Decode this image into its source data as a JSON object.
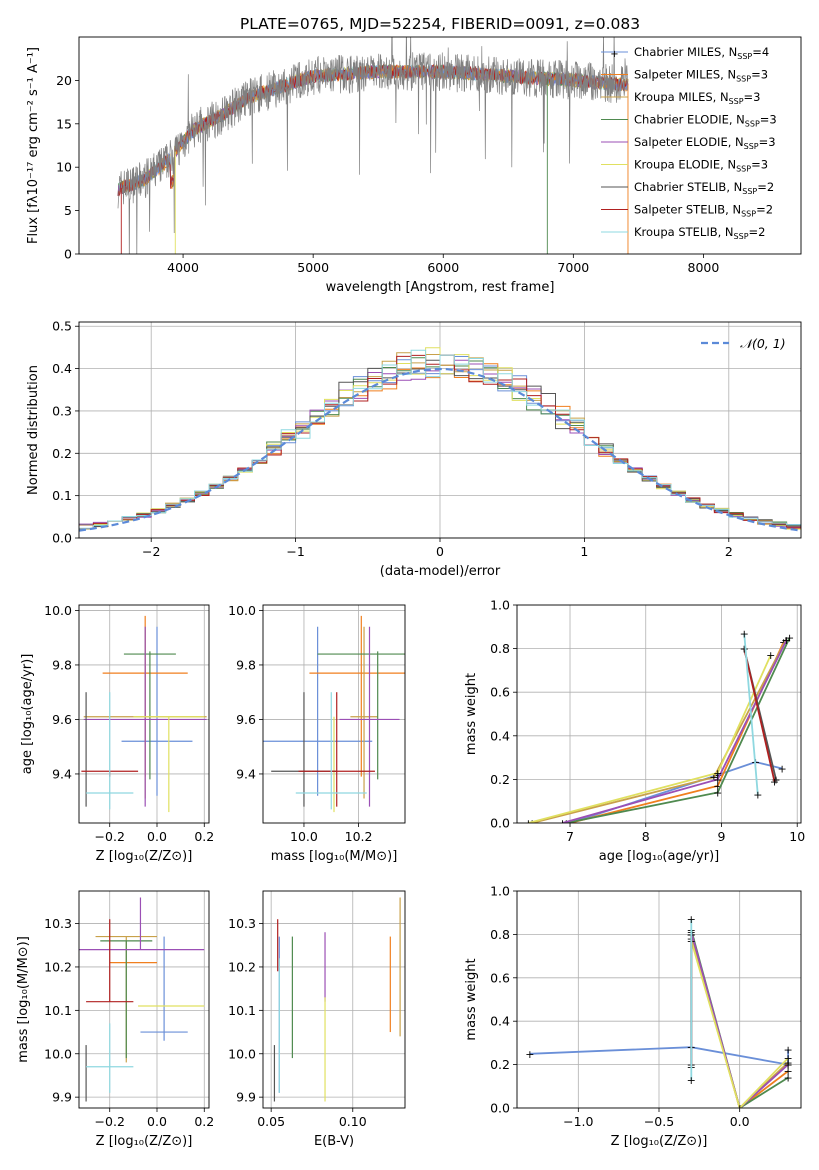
{
  "title": "PLATE=0765, MJD=52254, FIBERID=0091, z=0.083",
  "colors": [
    "#6a8fd8",
    "#f07f1e",
    "#c8a14a",
    "#4f8a4f",
    "#9b4fb5",
    "#e0e060",
    "#555555",
    "#b02020",
    "#8fd8e0"
  ],
  "legend_entries": [
    {
      "base": "Chabrier MILES, N",
      "sub": "SSP",
      "tail": "=4"
    },
    {
      "base": "Salpeter MILES, N",
      "sub": "SSP",
      "tail": "=3"
    },
    {
      "base": "Kroupa MILES, N",
      "sub": "SSP",
      "tail": "=3"
    },
    {
      "base": "Chabrier ELODIE, N",
      "sub": "SSP",
      "tail": "=3"
    },
    {
      "base": "Salpeter ELODIE, N",
      "sub": "SSP",
      "tail": "=3"
    },
    {
      "base": "Kroupa ELODIE, N",
      "sub": "SSP",
      "tail": "=3"
    },
    {
      "base": "Chabrier STELIB, N",
      "sub": "SSP",
      "tail": "=2"
    },
    {
      "base": "Salpeter STELIB, N",
      "sub": "SSP",
      "tail": "=2"
    },
    {
      "base": "Kroupa STELIB, N",
      "sub": "SSP",
      "tail": "=2"
    }
  ],
  "chart_data": [
    {
      "id": "spectrum",
      "type": "line",
      "xlabel": "wavelength [Angstrom, rest frame]",
      "ylabel": "Flux [fλ10⁻¹⁷ erg cm⁻² s⁻¹ A⁻¹]",
      "xlim": [
        3200,
        8750
      ],
      "ylim": [
        0,
        25
      ],
      "xticks": [
        4000,
        5000,
        6000,
        7000,
        8000
      ],
      "yticks": [
        0,
        5,
        10,
        15,
        20
      ],
      "grid": false,
      "legend": "upper right",
      "continuum": {
        "x": [
          3500,
          3700,
          3900,
          4000,
          4100,
          4300,
          4500,
          4700,
          5000,
          5500,
          6000,
          6500,
          7000,
          7400
        ],
        "y": [
          7.5,
          8.5,
          11,
          13,
          14.5,
          16,
          18,
          19,
          20.5,
          21,
          21,
          20.5,
          20,
          19.5
        ]
      }
    },
    {
      "id": "residuals",
      "type": "step",
      "xlabel": "(data-model)/error",
      "ylabel": "Normed distribution",
      "xlim": [
        -2.5,
        2.5
      ],
      "ylim": [
        0,
        0.51
      ],
      "xticks": [
        -2,
        -1,
        0,
        1,
        2
      ],
      "yticks": [
        0.0,
        0.1,
        0.2,
        0.3,
        0.4,
        0.5
      ],
      "grid": true,
      "legend": "upper right",
      "reference_label": "𝒩(0, 1)"
    },
    {
      "id": "age_vs_Z",
      "type": "errorbar",
      "xlabel": "Z [log₁₀(Z/Z⊙)]",
      "ylabel": "age  [log₁₀(age/yr)]",
      "xlim": [
        -0.33,
        0.22
      ],
      "ylim": [
        9.22,
        10.02
      ],
      "xticks": [
        -0.2,
        0.0,
        0.2
      ],
      "yticks": [
        9.4,
        9.6,
        9.8,
        10.0
      ],
      "points": [
        {
          "x": 0.0,
          "y": 9.52,
          "xerr": 0.15,
          "yerr": [
            0.2,
            0.42
          ]
        },
        {
          "x": -0.05,
          "y": 9.77,
          "xerr": 0.18,
          "yerr": [
            0.38,
            0.21
          ]
        },
        {
          "x": -0.05,
          "y": 9.61,
          "xerr": 0.26,
          "yerr": [
            0.3,
            0.33
          ]
        },
        {
          "x": -0.03,
          "y": 9.84,
          "xerr": 0.11,
          "yerr": [
            0.46,
            0.01
          ]
        },
        {
          "x": -0.05,
          "y": 9.6,
          "xerr": 0.26,
          "yerr": [
            0.32,
            0.34
          ]
        },
        {
          "x": 0.05,
          "y": 9.61,
          "xerr": 0.15,
          "yerr": [
            0.35,
            0.0
          ]
        },
        {
          "x": -0.3,
          "y": 9.41,
          "xerr": 0.0,
          "yerr": [
            0.13,
            0.29
          ]
        },
        {
          "x": -0.2,
          "y": 9.41,
          "xerr": 0.12,
          "yerr": [
            0.02,
            0.0
          ]
        },
        {
          "x": -0.2,
          "y": 9.33,
          "xerr": 0.1,
          "yerr": [
            0.06,
            0.37
          ]
        }
      ]
    },
    {
      "id": "age_vs_mass",
      "type": "errorbar",
      "xlabel": "mass [log₁₀(M/M⊙)]",
      "ylabel": "",
      "xlim": [
        9.85,
        10.37
      ],
      "ylim": [
        9.22,
        10.02
      ],
      "xticks": [
        10.0,
        10.2
      ],
      "yticks": [
        9.4,
        9.6,
        9.8,
        10.0
      ],
      "points": [
        {
          "x": 10.05,
          "y": 9.52,
          "xerr": 0.2,
          "yerr": [
            0.2,
            0.42
          ]
        },
        {
          "x": 10.21,
          "y": 9.77,
          "xerr": 0.19,
          "yerr": [
            0.38,
            0.21
          ]
        },
        {
          "x": 10.22,
          "y": 9.61,
          "xerr": 0.05,
          "yerr": [
            0.3,
            0.33
          ]
        },
        {
          "x": 10.27,
          "y": 9.84,
          "xerr": 0.22,
          "yerr": [
            0.46,
            0.01
          ]
        },
        {
          "x": 10.24,
          "y": 9.6,
          "xerr": 0.11,
          "yerr": [
            0.32,
            0.34
          ]
        },
        {
          "x": 10.11,
          "y": 9.61,
          "xerr": 0.0,
          "yerr": [
            0.35,
            0.0
          ]
        },
        {
          "x": 10.0,
          "y": 9.41,
          "xerr": 0.12,
          "yerr": [
            0.13,
            0.29
          ]
        },
        {
          "x": 10.12,
          "y": 9.41,
          "xerr": 0.14,
          "yerr": [
            0.13,
            0.29
          ]
        },
        {
          "x": 10.1,
          "y": 9.33,
          "xerr": 0.13,
          "yerr": [
            0.06,
            0.37
          ]
        }
      ]
    },
    {
      "id": "weight_vs_age",
      "type": "line",
      "xlabel": "age  [log₁₀(age/yr)]",
      "ylabel": "mass weight",
      "xlim": [
        6.3,
        10.05
      ],
      "ylim": [
        0,
        1
      ],
      "xticks": [
        7,
        8,
        9,
        10
      ],
      "yticks": [
        0.0,
        0.2,
        0.4,
        0.6,
        0.8,
        1.0
      ],
      "series": [
        {
          "x": [
            7.0,
            8.95,
            9.45,
            9.8
          ],
          "y": [
            0.0,
            0.22,
            0.28,
            0.25
          ]
        },
        {
          "x": [
            7.0,
            8.95,
            9.82
          ],
          "y": [
            0.0,
            0.17,
            0.83
          ]
        },
        {
          "x": [
            6.5,
            8.9,
            9.85
          ],
          "y": [
            0.0,
            0.21,
            0.84
          ]
        },
        {
          "x": [
            6.95,
            8.95,
            9.9
          ],
          "y": [
            0.0,
            0.14,
            0.85
          ]
        },
        {
          "x": [
            6.9,
            8.95,
            9.86
          ],
          "y": [
            0.0,
            0.2,
            0.84
          ]
        },
        {
          "x": [
            6.45,
            8.95,
            9.65
          ],
          "y": [
            0.0,
            0.23,
            0.77
          ]
        },
        {
          "x": [
            9.3,
            9.72
          ],
          "y": [
            0.8,
            0.2
          ]
        },
        {
          "x": [
            9.3,
            9.7
          ],
          "y": [
            0.8,
            0.19
          ]
        },
        {
          "x": [
            9.3,
            9.48
          ],
          "y": [
            0.87,
            0.13
          ]
        }
      ]
    },
    {
      "id": "mass_vs_Z",
      "type": "errorbar",
      "xlabel": "Z [log₁₀(Z/Z⊙)]",
      "ylabel": "mass [log₁₀(M/M⊙)]",
      "xlim": [
        -0.33,
        0.22
      ],
      "ylim": [
        9.875,
        10.375
      ],
      "xticks": [
        -0.2,
        0.0,
        0.2
      ],
      "yticks": [
        9.9,
        10.0,
        10.1,
        10.2,
        10.3
      ],
      "points": [
        {
          "x": 0.03,
          "y": 10.05,
          "xerr": 0.1,
          "yerr": [
            0.02,
            0.22
          ]
        },
        {
          "x": -0.1,
          "y": 10.21,
          "xerr": 0.1,
          "yerr": [
            0.0,
            0.0
          ]
        },
        {
          "x": -0.13,
          "y": 10.27,
          "xerr": 0.13,
          "yerr": [
            0.29,
            0.0
          ]
        },
        {
          "x": -0.13,
          "y": 10.26,
          "xerr": 0.11,
          "yerr": [
            0.27,
            0.0
          ]
        },
        {
          "x": -0.07,
          "y": 10.24,
          "xerr": 0.27,
          "yerr": [
            0.0,
            0.12
          ]
        },
        {
          "x": 0.06,
          "y": 10.11,
          "xerr": 0.14,
          "yerr": [
            0.0,
            0.0
          ]
        },
        {
          "x": -0.3,
          "y": 9.97,
          "xerr": 0.0,
          "yerr": [
            0.08,
            0.05
          ]
        },
        {
          "x": -0.2,
          "y": 10.12,
          "xerr": 0.1,
          "yerr": [
            0.0,
            0.19
          ]
        },
        {
          "x": -0.2,
          "y": 9.97,
          "xerr": 0.1,
          "yerr": [
            0.06,
            0.1
          ]
        }
      ]
    },
    {
      "id": "mass_vs_EBV",
      "type": "errorbar",
      "xlabel": "E(B-V)",
      "ylabel": "",
      "xlim": [
        0.045,
        0.132
      ],
      "ylim": [
        9.875,
        10.375
      ],
      "xticks": [
        0.05,
        0.1
      ],
      "yticks": [
        9.9,
        10.0,
        10.1,
        10.2,
        10.3
      ],
      "points": [
        {
          "x": 0.055,
          "y": 10.05,
          "xerr": 0.0,
          "yerr": [
            0.14,
            0.22
          ]
        },
        {
          "x": 0.123,
          "y": 10.2,
          "xerr": 0.0,
          "yerr": [
            0.15,
            0.07
          ]
        },
        {
          "x": 0.129,
          "y": 10.24,
          "xerr": 0.0,
          "yerr": [
            0.2,
            0.12
          ]
        },
        {
          "x": 0.063,
          "y": 10.2,
          "xerr": 0.0,
          "yerr": [
            0.21,
            0.07
          ]
        },
        {
          "x": 0.083,
          "y": 10.24,
          "xerr": 0.0,
          "yerr": [
            0.12,
            0.04
          ]
        },
        {
          "x": 0.083,
          "y": 10.02,
          "xerr": 0.0,
          "yerr": [
            0.13,
            0.11
          ]
        },
        {
          "x": 0.052,
          "y": 9.97,
          "xerr": 0.0,
          "yerr": [
            0.08,
            0.05
          ]
        },
        {
          "x": 0.054,
          "y": 10.22,
          "xerr": 0.0,
          "yerr": [
            0.03,
            0.09
          ]
        },
        {
          "x": 0.055,
          "y": 10.02,
          "xerr": 0.0,
          "yerr": [
            0.11,
            0.2
          ]
        }
      ]
    },
    {
      "id": "weight_vs_Z",
      "type": "line",
      "xlabel": "Z [log₁₀(Z/Z⊙)]",
      "ylabel": "mass weight",
      "xlim": [
        -1.38,
        0.38
      ],
      "ylim": [
        0,
        1
      ],
      "xticks": [
        -1.0,
        -0.5,
        0.0
      ],
      "yticks": [
        0.0,
        0.2,
        0.4,
        0.6,
        0.8,
        1.0
      ],
      "series": [
        {
          "x": [
            -1.3,
            -0.3,
            0.3,
            0.3
          ],
          "y": [
            0.25,
            0.28,
            0.2,
            0.27
          ]
        },
        {
          "x": [
            -0.3,
            0.0,
            0.3
          ],
          "y": [
            0.8,
            0.0,
            0.17
          ]
        },
        {
          "x": [
            -0.3,
            0.0,
            0.3
          ],
          "y": [
            0.78,
            0.0,
            0.21
          ]
        },
        {
          "x": [
            -0.3,
            0.0,
            0.3
          ],
          "y": [
            0.82,
            0.0,
            0.14
          ]
        },
        {
          "x": [
            -0.3,
            0.0,
            0.3
          ],
          "y": [
            0.81,
            0.0,
            0.2
          ]
        },
        {
          "x": [
            -0.3,
            0.0,
            0.3
          ],
          "y": [
            0.77,
            0.0,
            0.23
          ]
        },
        {
          "x": [
            -0.3,
            -0.3
          ],
          "y": [
            0.8,
            0.2
          ]
        },
        {
          "x": [
            -0.3,
            -0.3
          ],
          "y": [
            0.8,
            0.19
          ]
        },
        {
          "x": [
            -0.3,
            -0.3
          ],
          "y": [
            0.87,
            0.13
          ]
        }
      ]
    }
  ]
}
